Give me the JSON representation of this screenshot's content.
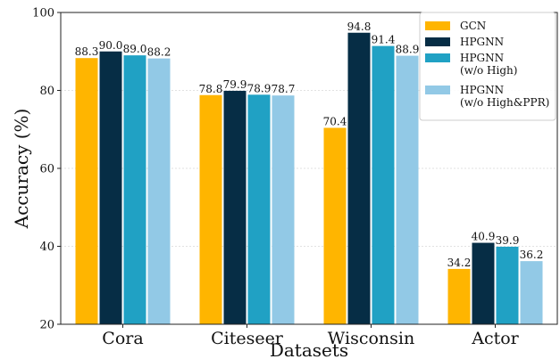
{
  "chart_data": {
    "type": "bar",
    "xlabel": "Datasets",
    "ylabel": "Accuracy (%)",
    "ylim": [
      20,
      100
    ],
    "yticks": [
      20,
      40,
      60,
      80,
      100
    ],
    "grid": "y",
    "legend_position": "top-right",
    "categories": [
      "Cora",
      "Citeseer",
      "Wisconsin",
      "Actor"
    ],
    "series": [
      {
        "name": "GCN",
        "name_lines": [
          "GCN"
        ],
        "color": "#FFB500",
        "values": [
          88.3,
          78.8,
          70.4,
          34.2
        ],
        "labels": [
          "88.3",
          "78.8",
          "70.4",
          "34.2"
        ]
      },
      {
        "name": "HPGNN",
        "name_lines": [
          "HPGNN"
        ],
        "color": "#062D45",
        "values": [
          90.0,
          79.9,
          94.8,
          40.9
        ],
        "labels": [
          "90.0",
          "79.9",
          "94.8",
          "40.9"
        ]
      },
      {
        "name": "HPGNN (w/o High)",
        "name_lines": [
          "HPGNN",
          "(w/o High)"
        ],
        "color": "#20A1C4",
        "values": [
          89.0,
          78.9,
          91.4,
          39.9
        ],
        "labels": [
          "89.0",
          "78.9",
          "91.4",
          "39.9"
        ]
      },
      {
        "name": "HPGNN (w/o High&PPR)",
        "name_lines": [
          "HPGNN",
          "(w/o High&PPR)"
        ],
        "color": "#92C9E6",
        "values": [
          88.2,
          78.7,
          88.9,
          36.2
        ],
        "labels": [
          "88.2",
          "78.7",
          "88.9",
          "36.2"
        ]
      }
    ]
  }
}
